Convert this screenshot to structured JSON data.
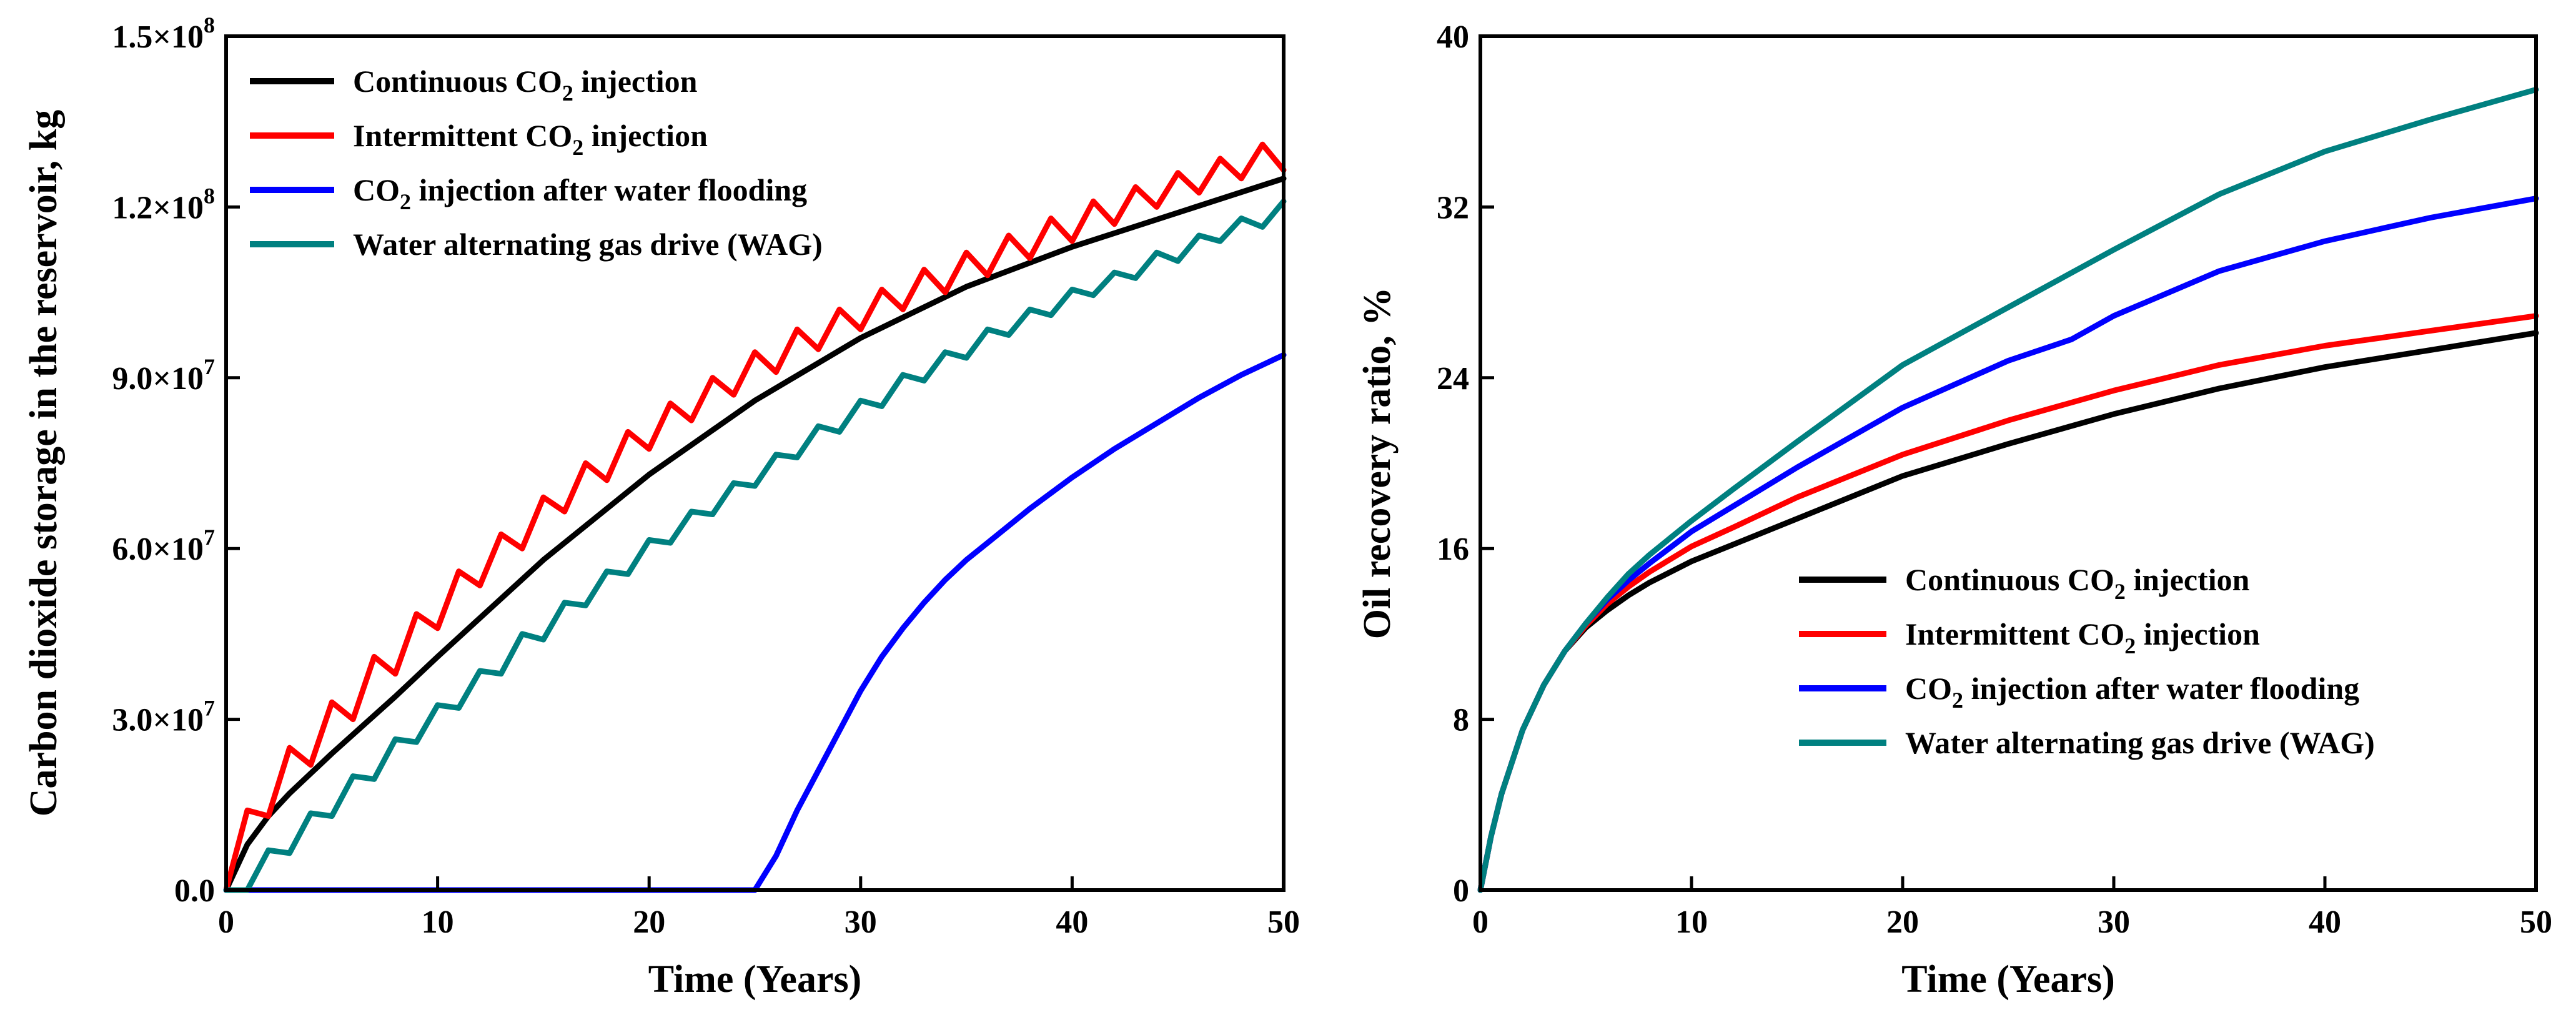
{
  "chart_data": [
    {
      "type": "line",
      "xlabel": "Time (Years)",
      "ylabel": "Carbon dioxide storage in the reservoir, kg",
      "xlim": [
        0,
        50
      ],
      "ylim": [
        0,
        150000000
      ],
      "xticks": [
        0,
        10,
        20,
        30,
        40,
        50
      ],
      "xtick_labels": [
        "0",
        "10",
        "20",
        "30",
        "40",
        "50"
      ],
      "yticks": [
        0,
        30000000,
        60000000,
        90000000,
        120000000,
        150000000
      ],
      "ytick_labels": [
        {
          "base": "0.0",
          "exp": ""
        },
        {
          "base": "3.0×10",
          "exp": "7"
        },
        {
          "base": "6.0×10",
          "exp": "7"
        },
        {
          "base": "9.0×10",
          "exp": "7"
        },
        {
          "base": "1.2×10",
          "exp": "8"
        },
        {
          "base": "1.5×10",
          "exp": "8"
        }
      ],
      "legend_position": "top-left",
      "series": [
        {
          "name": "Continuous CO2 injection",
          "legend_pre": "Continuous CO",
          "legend_sub": "2",
          "legend_post": " injection",
          "color": "#000000",
          "x": [
            0,
            1,
            2,
            3,
            5,
            8,
            10,
            15,
            20,
            25,
            30,
            35,
            40,
            45,
            50
          ],
          "y": [
            0,
            8000000,
            13000000,
            17000000,
            24000000,
            34000000,
            41000000,
            58000000,
            73000000,
            86000000,
            97000000,
            106000000,
            113000000,
            119000000,
            125000000
          ]
        },
        {
          "name": "Intermittent CO2 injection",
          "legend_pre": "Intermittent CO",
          "legend_sub": "2",
          "legend_post": " injection",
          "color": "#ff0000",
          "x": [
            0,
            1,
            2,
            3,
            4,
            5,
            6,
            7,
            8,
            9,
            10,
            11,
            12,
            13,
            14,
            15,
            16,
            17,
            18,
            19,
            20,
            21,
            22,
            23,
            24,
            25,
            26,
            27,
            28,
            29,
            30,
            31,
            32,
            33,
            34,
            35,
            36,
            37,
            38,
            39,
            40,
            41,
            42,
            43,
            44,
            45,
            46,
            47,
            48,
            49,
            50
          ],
          "y": [
            0,
            14000000,
            13000000,
            25000000,
            22000000,
            33000000,
            30000000,
            41000000,
            38000000,
            48500000,
            46000000,
            56000000,
            53500000,
            62500000,
            60000000,
            69000000,
            66500000,
            75000000,
            72000000,
            80500000,
            77500000,
            85500000,
            82500000,
            90000000,
            87000000,
            94500000,
            91000000,
            98500000,
            95000000,
            102000000,
            98500000,
            105500000,
            102000000,
            109000000,
            105000000,
            112000000,
            108000000,
            115000000,
            111000000,
            118000000,
            114000000,
            121000000,
            117000000,
            123500000,
            120000000,
            126000000,
            122500000,
            128500000,
            125000000,
            131000000,
            126500000
          ]
        },
        {
          "name": "CO2 injection after water flooding",
          "legend_pre": "CO",
          "legend_sub": "2",
          "legend_post": " injection after water flooding",
          "color": "#0000ff",
          "x": [
            0,
            25,
            26,
            27,
            28,
            29,
            30,
            31,
            32,
            33,
            34,
            35,
            36,
            38,
            40,
            42,
            44,
            46,
            48,
            50
          ],
          "y": [
            0,
            0,
            6000000,
            14000000,
            21000000,
            28000000,
            35000000,
            41000000,
            46000000,
            50500000,
            54500000,
            58000000,
            61000000,
            67000000,
            72500000,
            77500000,
            82000000,
            86500000,
            90500000,
            94000000
          ]
        },
        {
          "name": "Water alternating gas drive (WAG)",
          "legend_pre": "Water alternating gas drive (WAG)",
          "legend_sub": "",
          "legend_post": "",
          "color": "#008080",
          "x": [
            0,
            1,
            2,
            3,
            4,
            5,
            6,
            7,
            8,
            9,
            10,
            11,
            12,
            13,
            14,
            15,
            16,
            17,
            18,
            19,
            20,
            21,
            22,
            23,
            24,
            25,
            26,
            27,
            28,
            29,
            30,
            31,
            32,
            33,
            34,
            35,
            36,
            37,
            38,
            39,
            40,
            41,
            42,
            43,
            44,
            45,
            46,
            47,
            48,
            49,
            50
          ],
          "y": [
            0,
            0,
            7000000,
            6500000,
            13500000,
            13000000,
            20000000,
            19500000,
            26500000,
            26000000,
            32500000,
            32000000,
            38500000,
            38000000,
            45000000,
            44000000,
            50500000,
            50000000,
            56000000,
            55500000,
            61500000,
            61000000,
            66500000,
            66000000,
            71500000,
            71000000,
            76500000,
            76000000,
            81500000,
            80500000,
            86000000,
            85000000,
            90500000,
            89500000,
            94500000,
            93500000,
            98500000,
            97500000,
            102000000,
            101000000,
            105500000,
            104500000,
            108500000,
            107500000,
            112000000,
            110500000,
            115000000,
            114000000,
            118000000,
            116500000,
            121000000
          ]
        }
      ]
    },
    {
      "type": "line",
      "xlabel": "Time (Years)",
      "ylabel": "Oil recovery ratio, %",
      "xlim": [
        0,
        50
      ],
      "ylim": [
        0,
        40
      ],
      "xticks": [
        0,
        10,
        20,
        30,
        40,
        50
      ],
      "xtick_labels": [
        "0",
        "10",
        "20",
        "30",
        "40",
        "50"
      ],
      "yticks": [
        0,
        8,
        16,
        24,
        32,
        40
      ],
      "ytick_labels": [
        {
          "base": "0",
          "exp": ""
        },
        {
          "base": "8",
          "exp": ""
        },
        {
          "base": "16",
          "exp": ""
        },
        {
          "base": "24",
          "exp": ""
        },
        {
          "base": "32",
          "exp": ""
        },
        {
          "base": "40",
          "exp": ""
        }
      ],
      "legend_position": "center-right",
      "series": [
        {
          "name": "Continuous CO2 injection",
          "legend_pre": "Continuous CO",
          "legend_sub": "2",
          "legend_post": " injection",
          "color": "#000000",
          "x": [
            0,
            0.5,
            1,
            2,
            3,
            4,
            5,
            6,
            7,
            8,
            10,
            12,
            15,
            20,
            25,
            30,
            35,
            40,
            45,
            50
          ],
          "y": [
            0,
            2.5,
            4.5,
            7.5,
            9.6,
            11.2,
            12.3,
            13.1,
            13.8,
            14.4,
            15.4,
            16.2,
            17.4,
            19.4,
            20.9,
            22.3,
            23.5,
            24.5,
            25.3,
            26.1
          ]
        },
        {
          "name": "Intermittent CO2 injection",
          "legend_pre": "Intermittent CO",
          "legend_sub": "2",
          "legend_post": " injection",
          "color": "#ff0000",
          "x": [
            0,
            0.5,
            1,
            2,
            3,
            4,
            5,
            6,
            7,
            8,
            10,
            12,
            15,
            20,
            25,
            30,
            35,
            40,
            45,
            50
          ],
          "y": [
            0,
            2.5,
            4.5,
            7.5,
            9.6,
            11.2,
            12.4,
            13.4,
            14.2,
            14.9,
            16.1,
            17.0,
            18.4,
            20.4,
            22.0,
            23.4,
            24.6,
            25.5,
            26.2,
            26.9
          ]
        },
        {
          "name": "CO2 injection after water flooding",
          "legend_pre": "CO",
          "legend_sub": "2",
          "legend_post": " injection after water flooding",
          "color": "#0000ff",
          "x": [
            0,
            0.5,
            1,
            2,
            3,
            4,
            5,
            6,
            7,
            8,
            10,
            12,
            15,
            20,
            25,
            28,
            30,
            35,
            40,
            45,
            50
          ],
          "y": [
            0,
            2.5,
            4.5,
            7.5,
            9.6,
            11.2,
            12.5,
            13.6,
            14.5,
            15.3,
            16.8,
            18.0,
            19.8,
            22.6,
            24.8,
            25.8,
            26.9,
            29.0,
            30.4,
            31.5,
            32.4
          ]
        },
        {
          "name": "Water alternating gas drive (WAG)",
          "legend_pre": "Water alternating gas drive (WAG)",
          "legend_sub": "",
          "legend_post": "",
          "color": "#008080",
          "x": [
            0,
            0.5,
            1,
            2,
            3,
            4,
            5,
            6,
            7,
            8,
            10,
            12,
            15,
            20,
            25,
            30,
            35,
            40,
            45,
            50
          ],
          "y": [
            0,
            2.5,
            4.5,
            7.5,
            9.6,
            11.2,
            12.5,
            13.7,
            14.8,
            15.7,
            17.3,
            18.8,
            21.0,
            24.6,
            27.3,
            30.0,
            32.6,
            34.6,
            36.1,
            37.5
          ]
        }
      ]
    }
  ]
}
